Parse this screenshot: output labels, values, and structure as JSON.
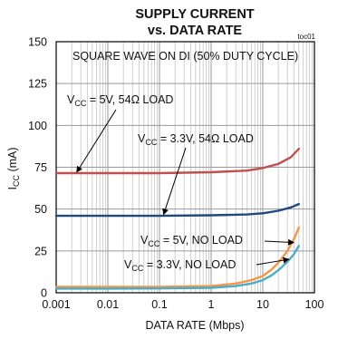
{
  "chart_data": {
    "type": "line",
    "title_line1": "SUPPLY CURRENT",
    "title_line2": "vs. DATA RATE",
    "figure_id": "toc01",
    "xlabel": "DATA RATE (Mbps)",
    "ylabel_main": "I",
    "ylabel_sub": "CC",
    "ylabel_unit": " (mA)",
    "x_scale": "log",
    "xlim": [
      0.001,
      100
    ],
    "ylim": [
      0,
      150
    ],
    "x_ticks": [
      {
        "value": 0.001,
        "label": "0.001"
      },
      {
        "value": 0.01,
        "label": "0.01"
      },
      {
        "value": 0.1,
        "label": "0.1"
      },
      {
        "value": 1,
        "label": "1"
      },
      {
        "value": 10,
        "label": "10"
      },
      {
        "value": 100,
        "label": "100"
      }
    ],
    "y_ticks": [
      {
        "value": 0,
        "label": "0"
      },
      {
        "value": 25,
        "label": "25"
      },
      {
        "value": 50,
        "label": "50"
      },
      {
        "value": 75,
        "label": "75"
      },
      {
        "value": 100,
        "label": "100"
      },
      {
        "value": 125,
        "label": "125"
      },
      {
        "value": 150,
        "label": "150"
      }
    ],
    "grid": true,
    "condition_note": "SQUARE WAVE ON DI (50% DUTY CYCLE)",
    "series": [
      {
        "name": "VCC = 5V, 54Ω LOAD",
        "color": "#c0504d",
        "points": [
          [
            0.001,
            71.5
          ],
          [
            0.01,
            71.5
          ],
          [
            0.1,
            71.5
          ],
          [
            1,
            72
          ],
          [
            5,
            73
          ],
          [
            10,
            74.5
          ],
          [
            20,
            77
          ],
          [
            35,
            81
          ],
          [
            50,
            86
          ]
        ]
      },
      {
        "name": "VCC = 3.3V, 54Ω LOAD",
        "color": "#1f497d",
        "points": [
          [
            0.001,
            46
          ],
          [
            0.01,
            46
          ],
          [
            0.1,
            46
          ],
          [
            1,
            46.3
          ],
          [
            5,
            46.8
          ],
          [
            10,
            47.5
          ],
          [
            20,
            49
          ],
          [
            35,
            51
          ],
          [
            50,
            53
          ]
        ]
      },
      {
        "name": "VCC = 5V, NO LOAD",
        "color": "#f79646",
        "points": [
          [
            0.001,
            3.5
          ],
          [
            0.01,
            3.5
          ],
          [
            0.1,
            3.6
          ],
          [
            1,
            4
          ],
          [
            3,
            5.5
          ],
          [
            6,
            7.5
          ],
          [
            10,
            10
          ],
          [
            15,
            14
          ],
          [
            20,
            18
          ],
          [
            30,
            25
          ],
          [
            40,
            32
          ],
          [
            50,
            39
          ]
        ]
      },
      {
        "name": "VCC = 3.3V, NO LOAD",
        "color": "#4bacc6",
        "points": [
          [
            0.001,
            2.5
          ],
          [
            0.01,
            2.5
          ],
          [
            0.1,
            2.6
          ],
          [
            1,
            3
          ],
          [
            3,
            4
          ],
          [
            6,
            5.5
          ],
          [
            10,
            7.5
          ],
          [
            15,
            10.5
          ],
          [
            20,
            13.5
          ],
          [
            30,
            18.5
          ],
          [
            40,
            23
          ],
          [
            50,
            28
          ]
        ]
      }
    ],
    "annotations": [
      {
        "main": "V",
        "sub": "CC",
        "rest": " = 5V, 54Ω LOAD"
      },
      {
        "main": "V",
        "sub": "CC",
        "rest": " = 3.3V, 54Ω LOAD"
      },
      {
        "main": "V",
        "sub": "CC",
        "rest": " = 5V, NO LOAD"
      },
      {
        "main": "V",
        "sub": "CC",
        "rest": " = 3.3V, NO LOAD"
      }
    ]
  }
}
